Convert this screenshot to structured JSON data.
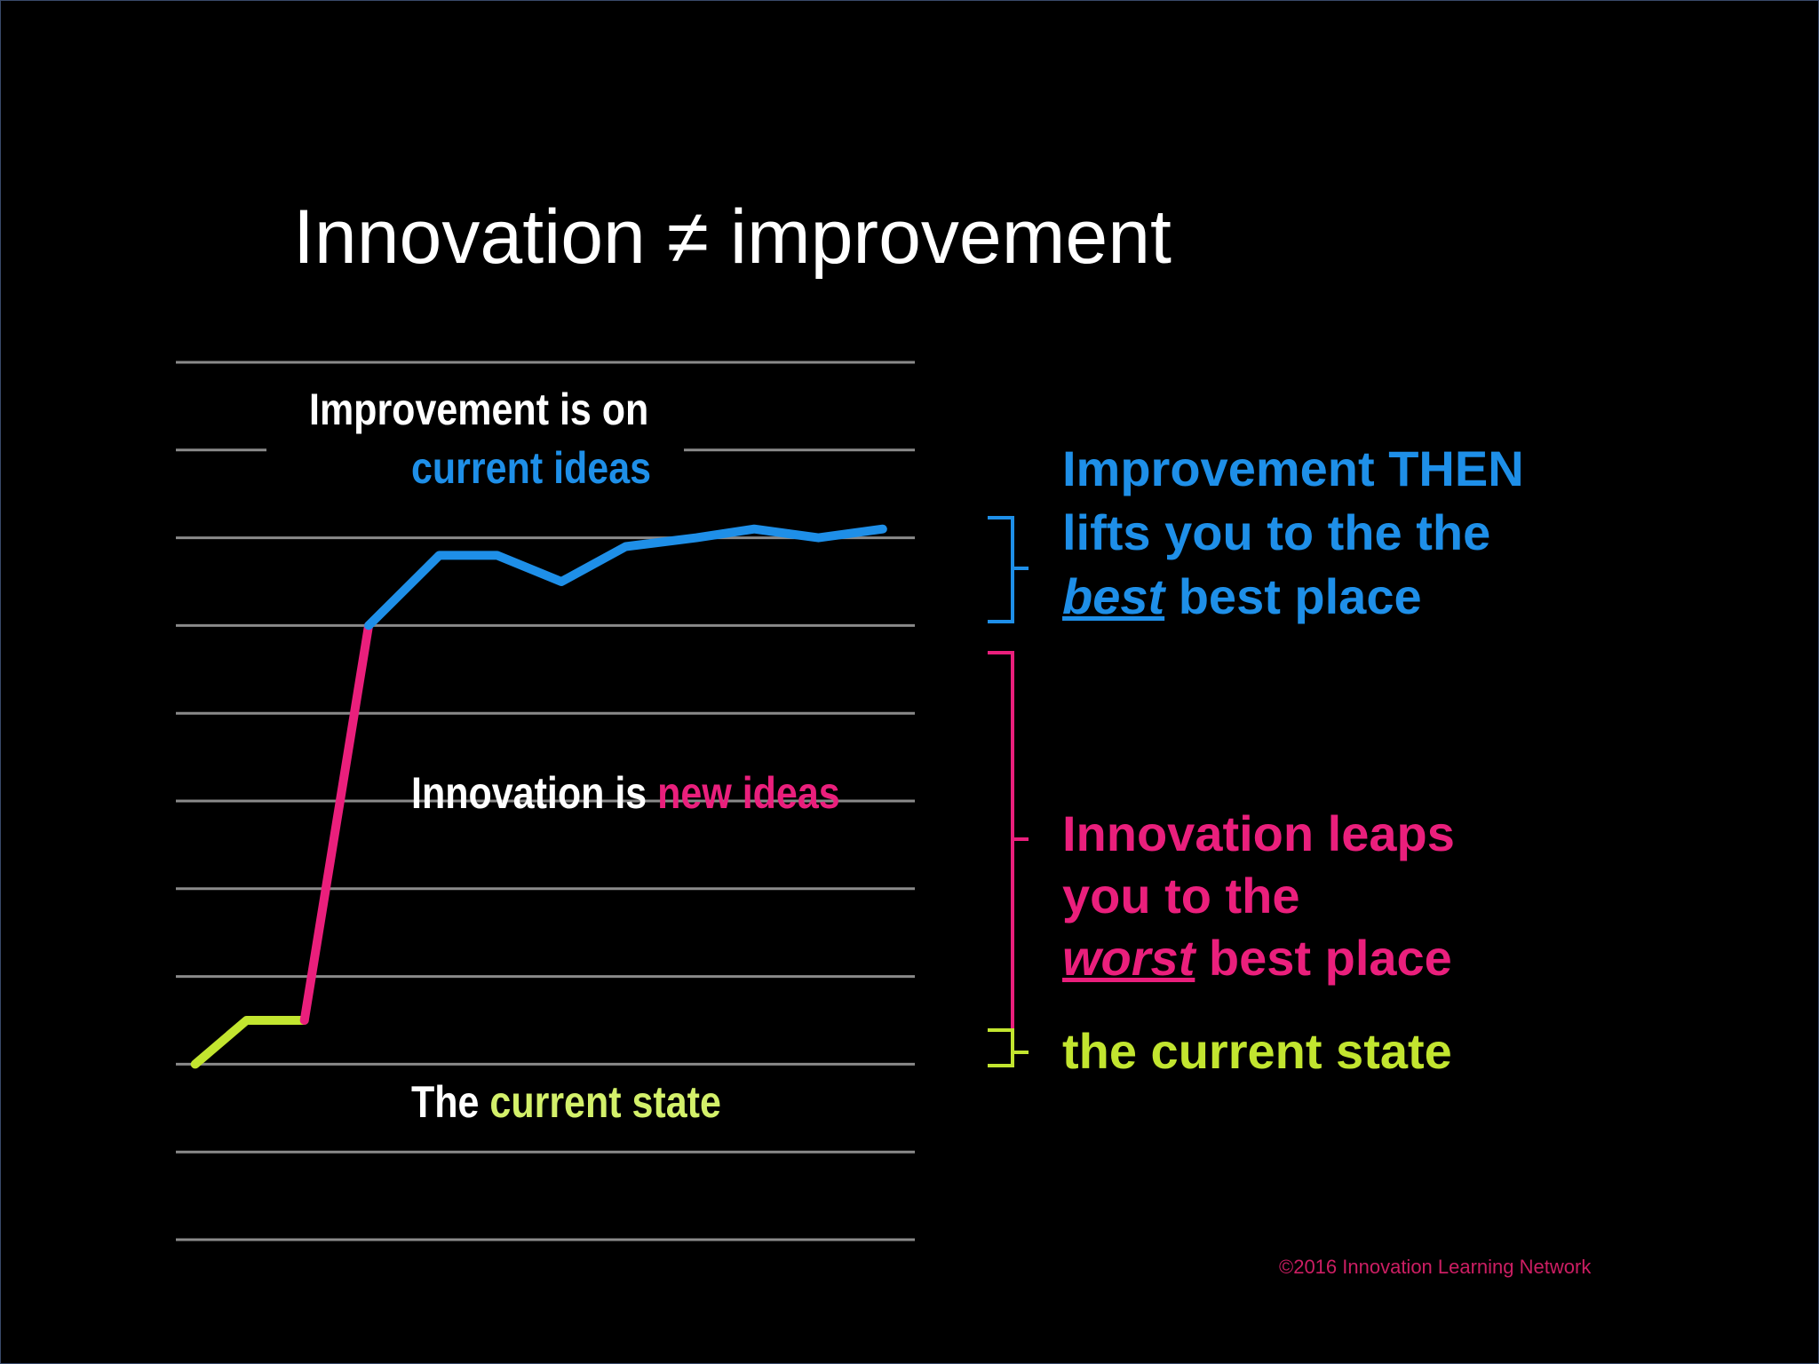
{
  "slide": {
    "title": "Innovation ≠ improvement",
    "copyright": "©2016 Innovation Learning Network"
  },
  "colors": {
    "background": "#000000",
    "gridline": "#8a8a8a",
    "improvement_blue": "#1e8fe8",
    "innovation_pink": "#ea1f7c",
    "current_lime": "#c2e52f",
    "current_lime_text": "#d3f06a",
    "white": "#ffffff"
  },
  "chart_labels": {
    "improvement_prefix": "Improvement is on",
    "improvement_highlight": "current ideas",
    "innovation_prefix": "Innovation is ",
    "innovation_highlight": "new ideas",
    "current_prefix": "The ",
    "current_highlight": "current state"
  },
  "captions": {
    "improvement_line1": "Improvement THEN",
    "improvement_line2": "lifts you to the the",
    "improvement_line3_emph": "best",
    "improvement_line3_rest": " best place",
    "innovation_line1": "Innovation leaps",
    "innovation_line2": "you to the",
    "innovation_line3_emph": "worst",
    "innovation_line3_rest": " best place",
    "current": "the current state"
  },
  "chart_data": {
    "type": "line",
    "gridlines": 11,
    "grid": true,
    "ylim": [
      0,
      10
    ],
    "series": [
      {
        "color": "#c2e52f",
        "points": [
          [
            0.3,
            2.0
          ],
          [
            1.1,
            2.5
          ],
          [
            2.0,
            2.5
          ]
        ]
      },
      {
        "color": "#ea1f7c",
        "points": [
          [
            2.0,
            2.5
          ],
          [
            3.0,
            7.0
          ]
        ]
      },
      {
        "color": "#1e8fe8",
        "points": [
          [
            3.0,
            7.0
          ],
          [
            4.1,
            7.8
          ],
          [
            5.0,
            7.8
          ],
          [
            6.0,
            7.5
          ],
          [
            7.0,
            7.9
          ],
          [
            8.1,
            8.0
          ],
          [
            9.0,
            8.1
          ],
          [
            10.0,
            8.0
          ],
          [
            11.0,
            8.1
          ]
        ]
      }
    ]
  }
}
